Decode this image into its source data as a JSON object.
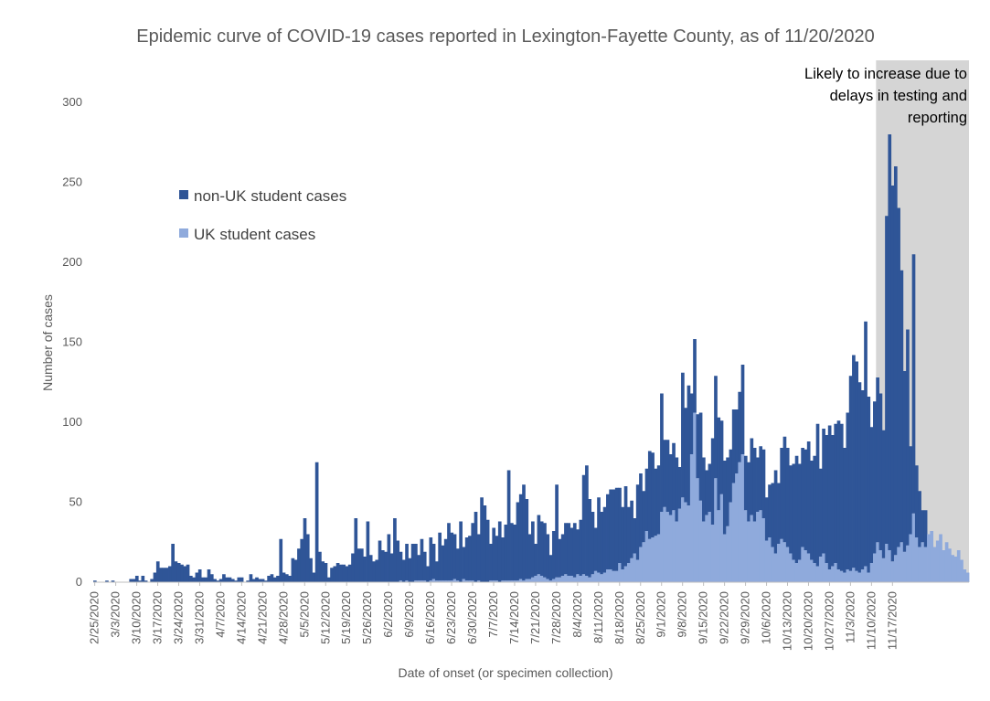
{
  "chart_data": {
    "type": "bar",
    "stacked": true,
    "title": "Epidemic curve of COVID-19 cases reported in Lexington-Fayette County, as of 11/20/2020",
    "xlabel": "Date of onset (or specimen collection)",
    "ylabel": "Number of cases",
    "ylim": [
      0,
      300
    ],
    "yticks": [
      0,
      50,
      100,
      150,
      200,
      250,
      300
    ],
    "start_date": "2/25/2020",
    "end_date": "11/20/2020",
    "x_tick_labels": [
      "2/25/2020",
      "3/3/2020",
      "3/10/2020",
      "3/17/2020",
      "3/24/2020",
      "3/31/2020",
      "4/7/2020",
      "4/14/2020",
      "4/21/2020",
      "4/28/2020",
      "5/5/2020",
      "5/12/2020",
      "5/19/2020",
      "5/26/2020",
      "6/2/2020",
      "6/9/2020",
      "6/16/2020",
      "6/23/2020",
      "6/30/2020",
      "7/7/2020",
      "7/14/2020",
      "7/21/2020",
      "7/28/2020",
      "8/4/2020",
      "8/11/2020",
      "8/18/2020",
      "8/25/2020",
      "9/1/2020",
      "9/8/2020",
      "9/15/2020",
      "9/22/2020",
      "9/29/2020",
      "10/6/2020",
      "10/13/2020",
      "10/20/2020",
      "10/27/2020",
      "11/3/2020",
      "11/10/2020",
      "11/17/2020"
    ],
    "legend": {
      "placement": "upper-left",
      "items": [
        "non-UK student cases",
        "UK student cases"
      ]
    },
    "colors": {
      "non_uk": "#2F5597",
      "uk": "#8FAADC",
      "shade": "#BFBFBF"
    },
    "shaded_region": {
      "from": "11/12/2020",
      "to": "11/20/2020"
    },
    "annotation": [
      "Likely to increase due to",
      "delays in testing and",
      "reporting"
    ],
    "series": [
      {
        "name": "non-UK student cases",
        "values": [
          1,
          0,
          0,
          0,
          1,
          0,
          1,
          0,
          0,
          0,
          0,
          0,
          2,
          2,
          4,
          1,
          4,
          1,
          0,
          2,
          6,
          13,
          9,
          9,
          9,
          10,
          24,
          13,
          12,
          11,
          10,
          11,
          4,
          3,
          6,
          8,
          3,
          3,
          8,
          5,
          2,
          1,
          2,
          5,
          3,
          3,
          2,
          1,
          3,
          3,
          0,
          1,
          5,
          2,
          3,
          2,
          2,
          1,
          4,
          5,
          3,
          4,
          27,
          6,
          5,
          4,
          15,
          14,
          21,
          27,
          40,
          30,
          15,
          6,
          75,
          19,
          13,
          12,
          3,
          9,
          10,
          12,
          11,
          11,
          10,
          11,
          18,
          40,
          21,
          21,
          16,
          38,
          17,
          13,
          14,
          26,
          20,
          19,
          30,
          18,
          40,
          26,
          18,
          14,
          23,
          15,
          24,
          23,
          16,
          26,
          18,
          10,
          27,
          22,
          12,
          30,
          22,
          26,
          36,
          30,
          28,
          20,
          38,
          20,
          27,
          28,
          36,
          44,
          29,
          53,
          48,
          39,
          23,
          33,
          28,
          38,
          27,
          35,
          69,
          36,
          35,
          49,
          53,
          60,
          50,
          28,
          35,
          20,
          37,
          34,
          34,
          28,
          16,
          30,
          58,
          24,
          26,
          32,
          33,
          30,
          34,
          28,
          35,
          62,
          69,
          49,
          39,
          27,
          47,
          39,
          41,
          47,
          50,
          51,
          52,
          47,
          39,
          50,
          35,
          36,
          22,
          47,
          46,
          32,
          39,
          55,
          53,
          42,
          43,
          74,
          42,
          45,
          38,
          42,
          40,
          26,
          78,
          59,
          75,
          38,
          46,
          40,
          55,
          40,
          28,
          30,
          54,
          64,
          58,
          46,
          46,
          43,
          33,
          46,
          40,
          44,
          56,
          34,
          37,
          48,
          46,
          34,
          40,
          43,
          27,
          33,
          40,
          52,
          38,
          57,
          66,
          62,
          55,
          60,
          67,
          60,
          62,
          63,
          70,
          62,
          67,
          89,
          55,
          78,
          80,
          90,
          82,
          87,
          93,
          92,
          78,
          98,
          122,
          133,
          131,
          119,
          112,
          153,
          110,
          85,
          95,
          103,
          98,
          80,
          205,
          260,
          235,
          243,
          212,
          170,
          113,
          135,
          55,
          162,
          45,
          35,
          20,
          23,
          0
        ],
        "note": "non-UK portion stacked on top of UK portion"
      },
      {
        "name": "UK student cases",
        "values": [
          0,
          0,
          0,
          0,
          0,
          0,
          0,
          0,
          0,
          0,
          0,
          0,
          0,
          0,
          0,
          0,
          0,
          0,
          0,
          0,
          0,
          0,
          0,
          0,
          0,
          0,
          0,
          0,
          0,
          0,
          0,
          0,
          0,
          0,
          0,
          0,
          0,
          0,
          0,
          0,
          0,
          0,
          0,
          0,
          0,
          0,
          0,
          0,
          0,
          0,
          0,
          0,
          0,
          0,
          0,
          0,
          0,
          0,
          0,
          0,
          0,
          0,
          0,
          0,
          0,
          0,
          0,
          0,
          0,
          0,
          0,
          0,
          0,
          0,
          0,
          0,
          0,
          0,
          0,
          0,
          0,
          0,
          0,
          0,
          0,
          0,
          0,
          0,
          0,
          0,
          0,
          0,
          0,
          0,
          0,
          0,
          0,
          0,
          0,
          0,
          0,
          0,
          1,
          0,
          1,
          0,
          0,
          1,
          1,
          1,
          1,
          0,
          1,
          2,
          1,
          1,
          1,
          1,
          1,
          1,
          2,
          1,
          0,
          2,
          1,
          1,
          1,
          0,
          1,
          0,
          0,
          0,
          1,
          1,
          1,
          0,
          1,
          1,
          1,
          1,
          1,
          1,
          2,
          1,
          2,
          2,
          3,
          4,
          5,
          4,
          3,
          2,
          1,
          2,
          3,
          3,
          4,
          5,
          4,
          4,
          3,
          5,
          4,
          5,
          4,
          3,
          5,
          7,
          6,
          5,
          6,
          8,
          8,
          7,
          7,
          12,
          8,
          10,
          12,
          15,
          18,
          14,
          22,
          25,
          32,
          27,
          28,
          29,
          30,
          44,
          47,
          44,
          42,
          45,
          38,
          46,
          53,
          50,
          48,
          80,
          106,
          65,
          51,
          38,
          42,
          44,
          36,
          65,
          45,
          55,
          30,
          35,
          50,
          62,
          68,
          75,
          80,
          45,
          38,
          42,
          38,
          44,
          45,
          40,
          26,
          28,
          22,
          18,
          24,
          27,
          25,
          22,
          18,
          14,
          12,
          14,
          22,
          20,
          18,
          14,
          12,
          10,
          16,
          18,
          12,
          8,
          10,
          12,
          8,
          7,
          6,
          8,
          7,
          9,
          7,
          6,
          8,
          10,
          6,
          12,
          18,
          25,
          20,
          15,
          24,
          20,
          13,
          17,
          22,
          25,
          19,
          23,
          30,
          43,
          28,
          22,
          25,
          22,
          30,
          32,
          22,
          26,
          30,
          20,
          25,
          21,
          17,
          16,
          20,
          14,
          8,
          6
        ]
      }
    ]
  }
}
